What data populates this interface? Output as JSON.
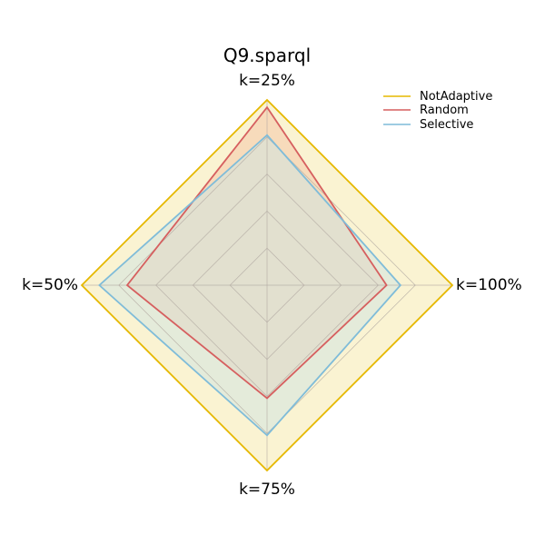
{
  "chart_data": {
    "type": "radar",
    "title": "Q9.sparql",
    "axes": [
      "k=25%",
      "k=100%",
      "k=75%",
      "k=50%"
    ],
    "rmax": 1.0,
    "grid_levels": [
      0.2,
      0.4,
      0.6,
      0.8,
      1.0
    ],
    "legend_position": "top-right",
    "series": [
      {
        "name": "NotAdaptive",
        "values": [
          1.0,
          1.0,
          1.0,
          1.0
        ],
        "color": "#e6b800",
        "fill": "#faf3d2"
      },
      {
        "name": "Random",
        "values": [
          0.96,
          0.645,
          0.61,
          0.755
        ],
        "color": "#d65f5f",
        "fill": "#f4c7a8"
      },
      {
        "name": "Selective",
        "values": [
          0.81,
          0.72,
          0.81,
          0.905
        ],
        "color": "#7fbcd9",
        "fill": "#d2e3e0"
      }
    ]
  }
}
